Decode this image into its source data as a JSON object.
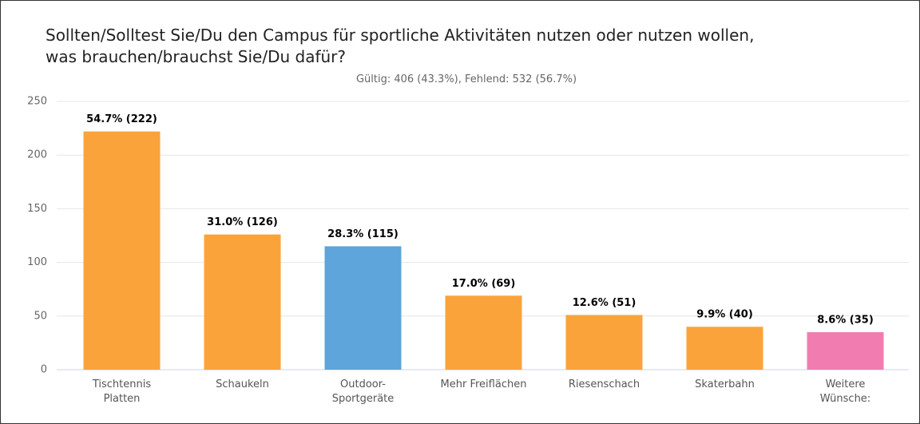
{
  "chart_data": {
    "type": "bar",
    "title": "Sollten/Solltest Sie/Du den Campus für sportliche Aktivitäten nutzen oder nutzen wollen,\nwas brauchen/brauchst Sie/Du dafür?",
    "subtitle": "Gültig: 406 (43.3%), Fehlend: 532 (56.7%)",
    "categories": [
      "Tischtennis\nPlatten",
      "Schaukeln",
      "Outdoor-\nSportgeräte",
      "Mehr Freiflächen",
      "Riesenschach",
      "Skaterbahn",
      "Weitere\nWünsche:"
    ],
    "values": [
      222,
      126,
      115,
      69,
      51,
      40,
      35
    ],
    "value_labels": [
      "54.7% (222)",
      "31.0% (126)",
      "28.3% (115)",
      "17.0% (69)",
      "12.6% (51)",
      "9.9% (40)",
      "8.6% (35)"
    ],
    "colors": [
      "#fba33b",
      "#fba33b",
      "#5da5da",
      "#fba33b",
      "#fba33b",
      "#fba33b",
      "#f17cb0"
    ],
    "ylim": [
      0,
      250
    ],
    "yticks": [
      0,
      50,
      100,
      150,
      200,
      250
    ],
    "grid": true
  }
}
